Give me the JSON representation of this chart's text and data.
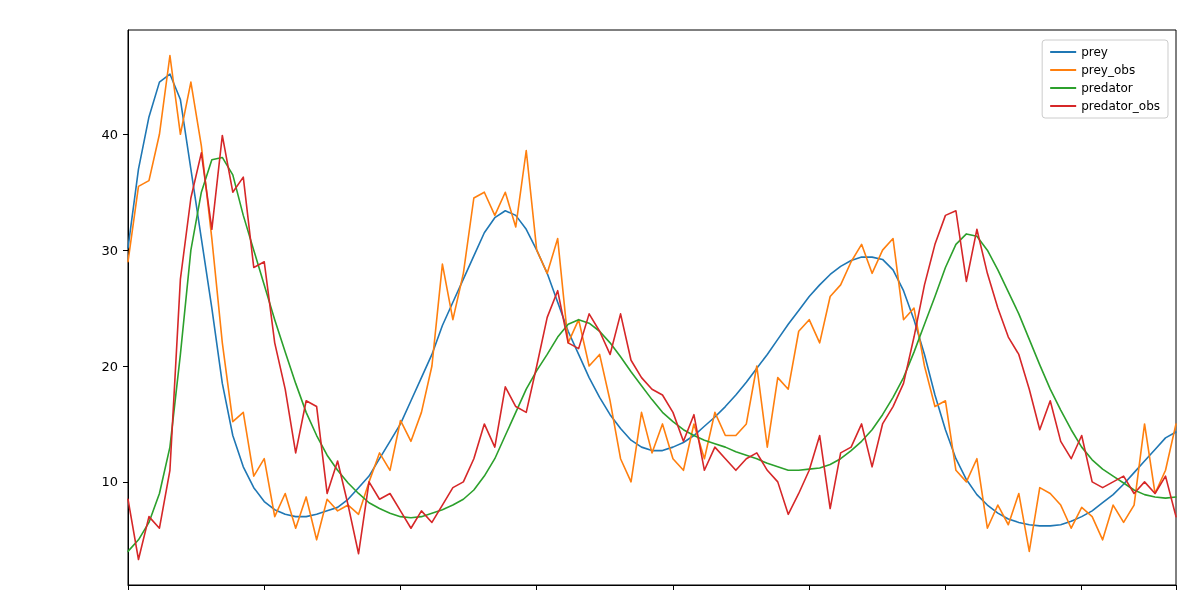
{
  "chart_data": {
    "type": "line",
    "categories": [
      null,
      null,
      null,
      null,
      null,
      null,
      null,
      null,
      null,
      null,
      null,
      null,
      null,
      null,
      null,
      null,
      null,
      null,
      null,
      null,
      null,
      null,
      null,
      null,
      null,
      null,
      null,
      null,
      null,
      null,
      null,
      null,
      null,
      null,
      null,
      null,
      null,
      null,
      null,
      null,
      null,
      null,
      null,
      null,
      null,
      null,
      null,
      null,
      null,
      null,
      null,
      null,
      null,
      null,
      null,
      null,
      null,
      null,
      null,
      null,
      null,
      null,
      null,
      null,
      null,
      null,
      null,
      null,
      null,
      null,
      null,
      null,
      null,
      null,
      null,
      null,
      null,
      null,
      null,
      null,
      null,
      null,
      null,
      null,
      null,
      null,
      null,
      null,
      null,
      null,
      null,
      null,
      null,
      null,
      null,
      null,
      null,
      null,
      null,
      null,
      null
    ],
    "ylim": [
      1.1,
      49
    ],
    "yticks": [
      10,
      20,
      30,
      40
    ],
    "grid": false,
    "legend": "top right",
    "marker": "none",
    "line_style": "solid",
    "tick_labels": "y",
    "series": [
      {
        "name": "prey",
        "color": "#1f77b4",
        "values": [
          30.2,
          37,
          41.5,
          44.5,
          45.2,
          43,
          37,
          31,
          25,
          18.5,
          14,
          11.3,
          9.5,
          8.3,
          7.6,
          7.2,
          7,
          7,
          7.2,
          7.5,
          7.8,
          8.5,
          9.5,
          10.5,
          12,
          13.5,
          15,
          17,
          19,
          21,
          23.5,
          25.5,
          27.5,
          29.5,
          31.5,
          32.8,
          33.4,
          33,
          31.8,
          30,
          28,
          25.5,
          23,
          21,
          19,
          17.3,
          15.8,
          14.6,
          13.6,
          13,
          12.7,
          12.7,
          13,
          13.4,
          14,
          14.8,
          15.6,
          16.5,
          17.5,
          18.6,
          19.8,
          21,
          22.3,
          23.6,
          24.8,
          26,
          27,
          27.9,
          28.6,
          29.1,
          29.4,
          29.4,
          29.2,
          28.3,
          26.5,
          24,
          21,
          17.5,
          14.5,
          12,
          10.2,
          8.9,
          8,
          7.3,
          6.8,
          6.5,
          6.3,
          6.2,
          6.2,
          6.3,
          6.6,
          7,
          7.5,
          8.2,
          8.9,
          9.8,
          10.8,
          11.8,
          12.8,
          13.8,
          14.3
        ]
      },
      {
        "name": "prey_obs",
        "color": "#ff7f0e",
        "values": [
          29,
          35.5,
          36,
          40,
          46.8,
          40,
          44.5,
          39,
          31,
          22,
          15.2,
          16,
          10.5,
          12,
          7,
          9,
          6,
          8.7,
          5,
          8.5,
          7.5,
          8,
          7.2,
          10,
          12.5,
          11,
          15.3,
          13.5,
          16,
          20,
          28.8,
          24,
          28,
          34.5,
          35,
          33,
          35,
          32,
          38.6,
          30,
          28,
          31,
          22,
          24,
          20,
          21,
          17,
          12,
          10,
          16,
          12.5,
          15,
          12,
          11,
          15,
          12,
          16,
          14,
          14,
          15,
          20,
          13,
          19,
          18,
          23,
          24,
          22,
          26,
          27,
          29,
          30.5,
          28,
          30,
          31,
          24,
          25,
          20,
          16.5,
          17,
          11,
          10,
          12,
          6,
          8,
          6.3,
          9,
          4,
          9.5,
          9,
          8,
          6,
          7.8,
          7,
          5,
          8,
          6.5,
          8,
          15,
          9,
          11,
          15
        ]
      },
      {
        "name": "predator",
        "color": "#2ca02c",
        "values": [
          4,
          5,
          6.5,
          9,
          13,
          21,
          30,
          35,
          37.8,
          38,
          36.5,
          33,
          30,
          27,
          24,
          21.2,
          18.5,
          16,
          14,
          12.3,
          11,
          9.9,
          9,
          8.2,
          7.7,
          7.3,
          7,
          6.9,
          7,
          7.3,
          7.6,
          8,
          8.5,
          9.3,
          10.5,
          12,
          14,
          16,
          18,
          19.6,
          21,
          22.5,
          23.6,
          24,
          23.7,
          23,
          22,
          20.8,
          19.5,
          18.3,
          17.1,
          16,
          15.2,
          14.5,
          14,
          13.6,
          13.3,
          13,
          12.6,
          12.3,
          12,
          11.6,
          11.3,
          11,
          11,
          11.1,
          11.2,
          11.5,
          12,
          12.7,
          13.5,
          14.5,
          15.8,
          17.3,
          19,
          21.2,
          23.6,
          26,
          28.5,
          30.5,
          31.4,
          31.2,
          30,
          28.3,
          26.4,
          24.5,
          22.3,
          20.1,
          18,
          16.2,
          14.5,
          13,
          11.9,
          11.1,
          10.5,
          9.9,
          9.3,
          8.9,
          8.7,
          8.6,
          8.7
        ]
      },
      {
        "name": "predator_obs",
        "color": "#d62728",
        "values": [
          8.5,
          3.3,
          7,
          6,
          11,
          27.5,
          34.5,
          38.4,
          31.8,
          39.9,
          35,
          36.3,
          28.5,
          29,
          22,
          18,
          12.5,
          17,
          16.5,
          9,
          11.8,
          8,
          3.8,
          10,
          8.5,
          9,
          7.5,
          6,
          7.5,
          6.5,
          8,
          9.5,
          10,
          12,
          15,
          13,
          18.2,
          16.5,
          16,
          20,
          24.2,
          26.5,
          22,
          21.5,
          24.5,
          23,
          21,
          24.5,
          20.5,
          19,
          18,
          17.5,
          16,
          13.5,
          15.8,
          11,
          13,
          12,
          11,
          12,
          12.5,
          11,
          10,
          7.2,
          9,
          11,
          14,
          7.7,
          12.5,
          13,
          15,
          11.3,
          15,
          16.5,
          18.5,
          22.5,
          27,
          30.5,
          33,
          33.4,
          27.3,
          31.8,
          28,
          25,
          22.5,
          21,
          18,
          14.5,
          17,
          13.5,
          12,
          14,
          10,
          9.5,
          10,
          10.5,
          9,
          10,
          9,
          10.5,
          7
        ]
      }
    ]
  }
}
